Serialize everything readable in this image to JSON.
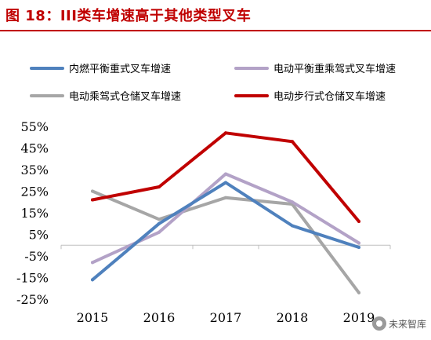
{
  "figure": {
    "title": "图 18：III类车增速高于其他类型叉车"
  },
  "watermark": {
    "text": "未来智库"
  },
  "chart_data": {
    "type": "line",
    "categories": [
      "2015",
      "2016",
      "2017",
      "2018",
      "2019"
    ],
    "y_tick_labels": [
      "55%",
      "45%",
      "35%",
      "25%",
      "15%",
      "5%",
      "-5%",
      "-15%",
      "-25%"
    ],
    "ylim": [
      -25,
      55
    ],
    "grid": false,
    "legend_position": "top",
    "series": [
      {
        "name": "内燃平衡重式叉车增速",
        "color": "#4f81bd",
        "values": [
          -16,
          10,
          29,
          9,
          -1
        ]
      },
      {
        "name": "电动平衡重乘驾式叉车增速",
        "color": "#b3a2c7",
        "values": [
          -8,
          6,
          33,
          20,
          1
        ]
      },
      {
        "name": "电动乘驾式仓储叉车增速",
        "color": "#a6a6a6",
        "values": [
          25,
          12,
          22,
          19,
          -22
        ]
      },
      {
        "name": "电动步行式仓储叉车增速",
        "color": "#c00000",
        "values": [
          21,
          27,
          52,
          48,
          11
        ]
      }
    ]
  }
}
